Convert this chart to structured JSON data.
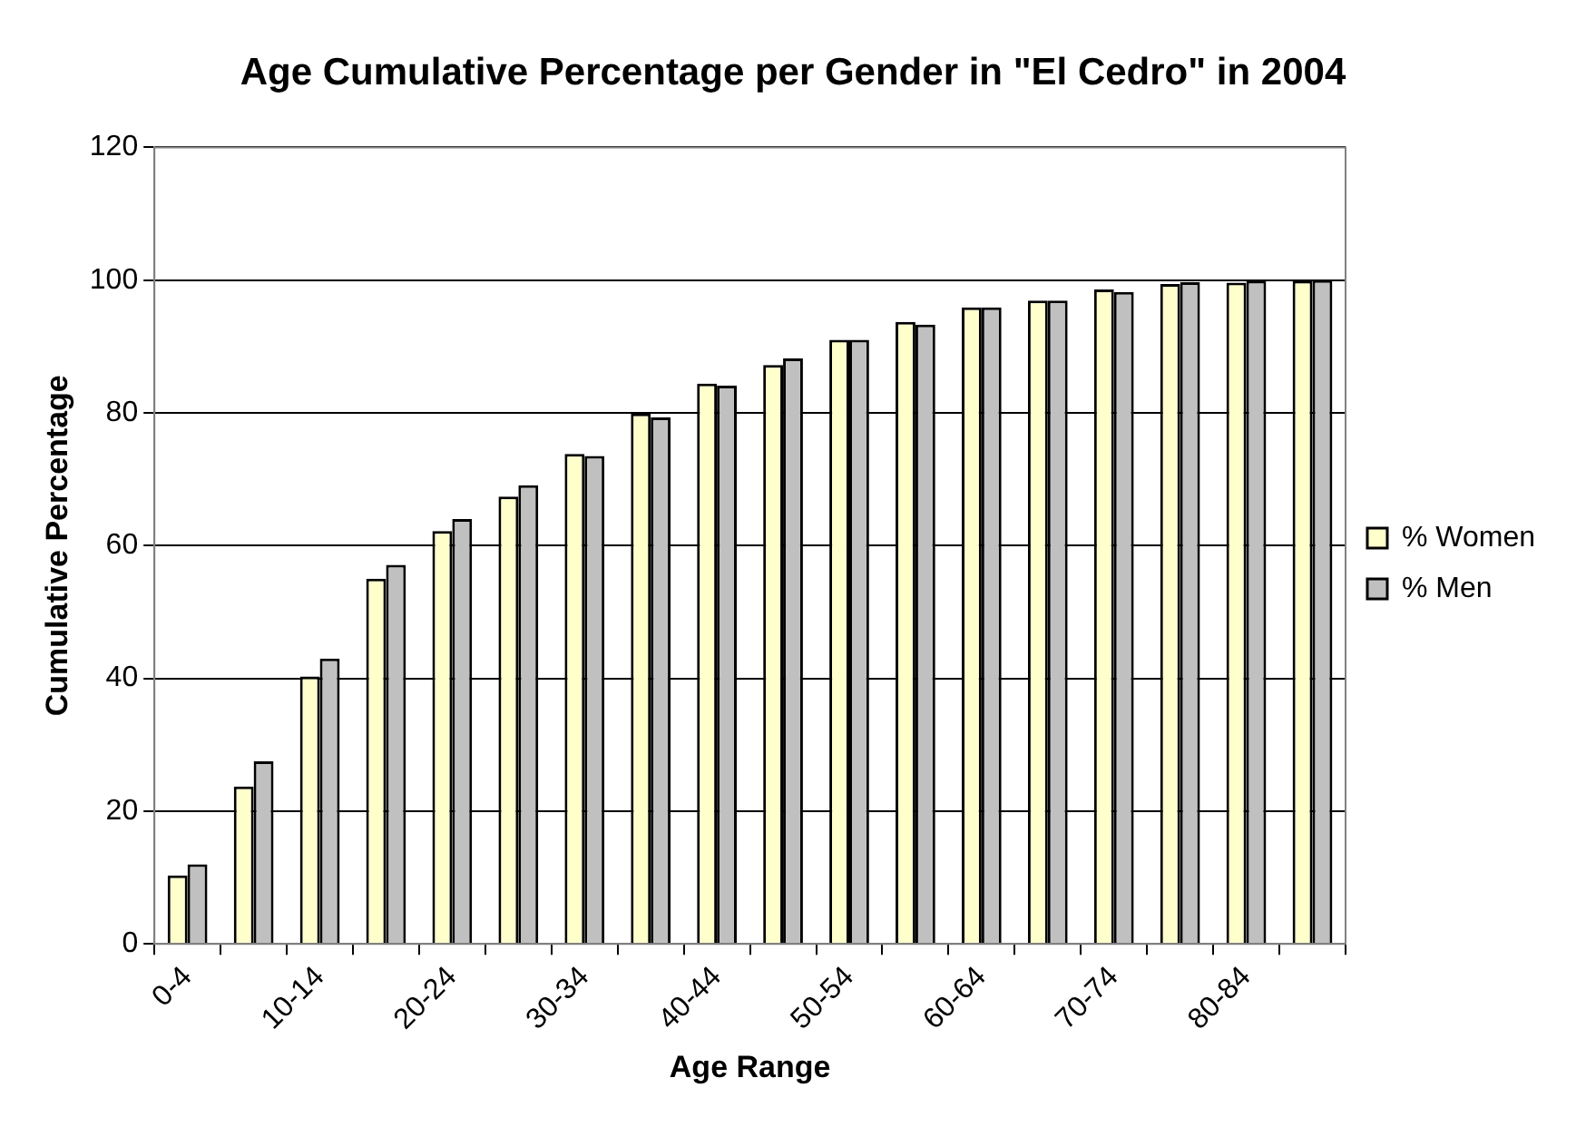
{
  "chart_data": {
    "type": "bar",
    "title": "Age Cumulative Percentage per Gender in \"El Cedro\" in 2004",
    "xlabel": "Age Range",
    "ylabel": "Cumulative Percentage",
    "categories": [
      "0-4",
      null,
      "10-14",
      null,
      "20-24",
      null,
      "30-34",
      null,
      "40-44",
      null,
      "50-54",
      null,
      "60-64",
      null,
      "70-74",
      null,
      "80-84",
      null
    ],
    "series": [
      {
        "name": "% Women",
        "color": "#ffffcc",
        "values": [
          10.3,
          23.7,
          40.3,
          55.0,
          62.2,
          67.4,
          73.8,
          79.9,
          84.4,
          87.2,
          91.0,
          93.7,
          95.9,
          96.9,
          98.6,
          99.4,
          99.6,
          99.9
        ]
      },
      {
        "name": "% Men",
        "color": "#c0c0c0",
        "values": [
          12.0,
          27.5,
          43.0,
          57.1,
          64.0,
          69.1,
          73.5,
          79.3,
          84.1,
          88.2,
          91.0,
          93.3,
          95.9,
          96.9,
          98.2,
          99.7,
          99.9,
          100
        ]
      }
    ],
    "ylim": [
      0,
      120
    ],
    "yticks": [
      0,
      20,
      40,
      60,
      80,
      100,
      120
    ],
    "grid": "y",
    "legend": "right"
  }
}
